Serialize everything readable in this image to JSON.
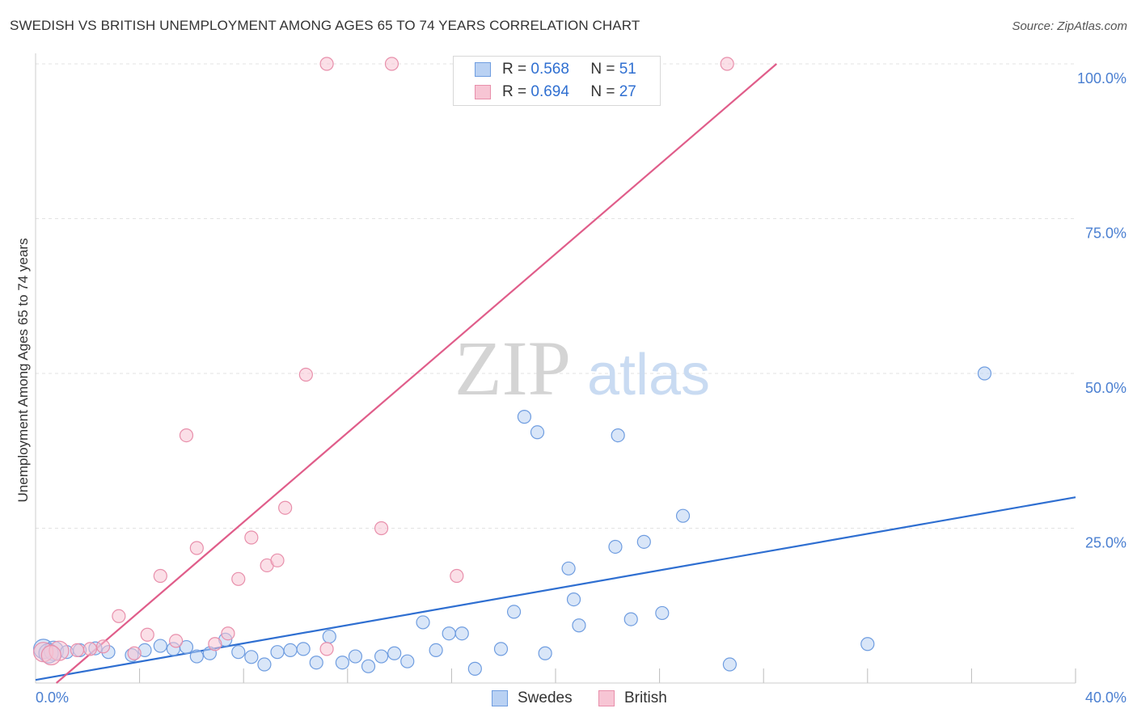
{
  "header": {
    "title": "SWEDISH VS BRITISH UNEMPLOYMENT AMONG AGES 65 TO 74 YEARS CORRELATION CHART",
    "source": "Source: ZipAtlas.com"
  },
  "watermark": {
    "zip": "ZIP",
    "atlas": "atlas"
  },
  "legend": {
    "rows": [
      {
        "r_label": "R =",
        "r_value": "0.568",
        "n_label": "N =",
        "n_value": "51",
        "color": "#6f9de0",
        "fill": "#b9d1f3"
      },
      {
        "r_label": "R =",
        "r_value": "0.694",
        "n_label": "N =",
        "n_value": "27",
        "color": "#e88fab",
        "fill": "#f7c5d4"
      }
    ]
  },
  "bottom_legend": {
    "swedes": "Swedes",
    "british": "British"
  },
  "chart_data": {
    "type": "scatter",
    "title": "SWEDISH VS BRITISH UNEMPLOYMENT AMONG AGES 65 TO 74 YEARS CORRELATION CHART",
    "xlabel": "",
    "ylabel": "Unemployment Among Ages 65 to 74 years",
    "xlim": [
      0,
      40
    ],
    "ylim": [
      0,
      100
    ],
    "x_tick_labels": [
      "0.0%",
      "40.0%"
    ],
    "y_tick_labels": [
      "100.0%",
      "75.0%",
      "50.0%",
      "25.0%"
    ],
    "y_tick_values": [
      100,
      75,
      50,
      25
    ],
    "grid": true,
    "series": [
      {
        "name": "Swedes",
        "color": "#2f6fd1",
        "fill": "#b9d1f3",
        "trend": [
          [
            0,
            0.5
          ],
          [
            40,
            30
          ]
        ],
        "points": [
          [
            0.3,
            5.5
          ],
          [
            0.7,
            5.2
          ],
          [
            1.2,
            5.0
          ],
          [
            1.7,
            5.3
          ],
          [
            2.3,
            5.6
          ],
          [
            2.8,
            5.0
          ],
          [
            3.7,
            4.5
          ],
          [
            4.2,
            5.3
          ],
          [
            4.8,
            6.0
          ],
          [
            5.3,
            5.5
          ],
          [
            5.8,
            5.8
          ],
          [
            6.2,
            4.3
          ],
          [
            6.7,
            4.8
          ],
          [
            7.3,
            7.0
          ],
          [
            7.8,
            5.0
          ],
          [
            8.3,
            4.2
          ],
          [
            8.8,
            3.0
          ],
          [
            9.3,
            5.0
          ],
          [
            9.8,
            5.3
          ],
          [
            10.3,
            5.5
          ],
          [
            10.8,
            3.3
          ],
          [
            11.3,
            7.5
          ],
          [
            11.8,
            3.3
          ],
          [
            12.3,
            4.3
          ],
          [
            12.8,
            2.7
          ],
          [
            13.3,
            4.3
          ],
          [
            13.8,
            4.8
          ],
          [
            14.3,
            3.5
          ],
          [
            14.9,
            9.8
          ],
          [
            15.4,
            5.3
          ],
          [
            15.9,
            8.0
          ],
          [
            16.4,
            8.0
          ],
          [
            16.9,
            2.3
          ],
          [
            17.9,
            5.5
          ],
          [
            18.4,
            11.5
          ],
          [
            18.8,
            43.0
          ],
          [
            19.3,
            40.5
          ],
          [
            19.6,
            4.8
          ],
          [
            20.5,
            18.5
          ],
          [
            20.7,
            13.5
          ],
          [
            20.9,
            9.3
          ],
          [
            22.3,
            22.0
          ],
          [
            22.9,
            10.3
          ],
          [
            22.4,
            40.0
          ],
          [
            23.4,
            22.8
          ],
          [
            24.1,
            11.3
          ],
          [
            24.9,
            27.0
          ],
          [
            26.7,
            3.0
          ],
          [
            32.0,
            6.3
          ],
          [
            36.5,
            50.0
          ],
          [
            0.5,
            4.8
          ]
        ]
      },
      {
        "name": "British",
        "color": "#e05d8a",
        "fill": "#f7c5d4",
        "trend": [
          [
            0.8,
            0
          ],
          [
            28.5,
            100
          ]
        ],
        "points": [
          [
            0.3,
            5.0
          ],
          [
            0.9,
            5.2
          ],
          [
            1.6,
            5.3
          ],
          [
            2.1,
            5.5
          ],
          [
            2.6,
            5.9
          ],
          [
            3.2,
            10.8
          ],
          [
            3.8,
            4.8
          ],
          [
            4.3,
            7.8
          ],
          [
            4.8,
            17.3
          ],
          [
            5.4,
            6.8
          ],
          [
            5.8,
            40.0
          ],
          [
            6.2,
            21.8
          ],
          [
            6.9,
            6.3
          ],
          [
            7.4,
            8.0
          ],
          [
            7.8,
            16.8
          ],
          [
            8.3,
            23.5
          ],
          [
            8.9,
            19.0
          ],
          [
            9.3,
            19.8
          ],
          [
            9.6,
            28.3
          ],
          [
            10.4,
            49.8
          ],
          [
            11.2,
            5.5
          ],
          [
            11.2,
            100
          ],
          [
            13.3,
            25.0
          ],
          [
            13.7,
            100
          ],
          [
            16.2,
            17.3
          ],
          [
            26.6,
            100
          ],
          [
            0.6,
            4.5
          ]
        ]
      }
    ]
  }
}
